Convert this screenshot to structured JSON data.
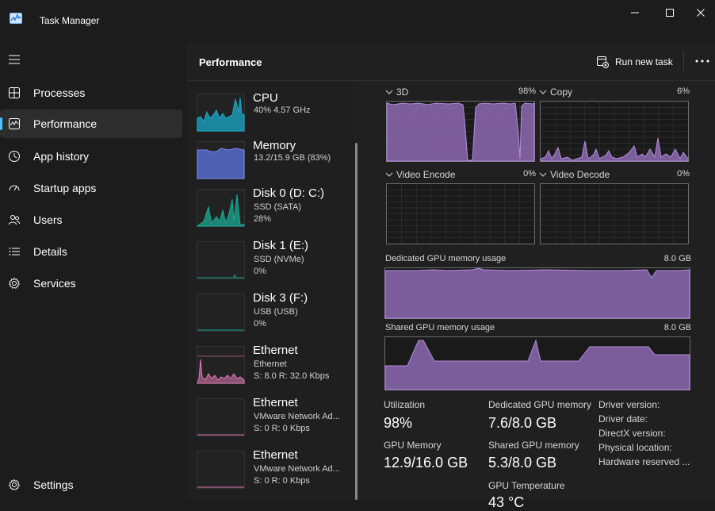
{
  "window": {
    "title": "Task Manager"
  },
  "nav": {
    "items": [
      {
        "label": "Processes",
        "icon": "processes-grid-icon"
      },
      {
        "label": "Performance",
        "icon": "performance-graph-icon"
      },
      {
        "label": "App history",
        "icon": "history-icon"
      },
      {
        "label": "Startup apps",
        "icon": "startup-gauge-icon"
      },
      {
        "label": "Users",
        "icon": "users-icon"
      },
      {
        "label": "Details",
        "icon": "details-list-icon"
      },
      {
        "label": "Services",
        "icon": "services-gear-icon"
      }
    ],
    "settings_label": "Settings"
  },
  "header": {
    "title": "Performance",
    "run_new_task": "Run new task",
    "more": "..."
  },
  "devices": [
    {
      "name": "CPU",
      "line1": "40% 4.57 GHz",
      "line2": ""
    },
    {
      "name": "Memory",
      "line1": "13.2/15.9 GB (83%)",
      "line2": ""
    },
    {
      "name": "Disk 0 (D: C:)",
      "line1": "SSD (SATA)",
      "line2": "28%"
    },
    {
      "name": "Disk 1 (E:)",
      "line1": "SSD (NVMe)",
      "line2": "0%"
    },
    {
      "name": "Disk 3 (F:)",
      "line1": "USB (USB)",
      "line2": "0%"
    },
    {
      "name": "Ethernet",
      "line1": "Ethernet",
      "line2": "S: 8.0  R: 32.0 Kbps"
    },
    {
      "name": "Ethernet",
      "line1": "VMware Network Ad...",
      "line2": "S: 0  R: 0 Kbps"
    },
    {
      "name": "Ethernet",
      "line1": "VMware Network Ad...",
      "line2": "S: 0  R: 0 Kbps"
    }
  ],
  "gpu": {
    "engines": [
      {
        "name": "3D",
        "value": "98%"
      },
      {
        "name": "Copy",
        "value": "6%"
      },
      {
        "name": "Video Encode",
        "value": "0%"
      },
      {
        "name": "Video Decode",
        "value": "0%"
      }
    ],
    "dedicated_label": "Dedicated GPU memory usage",
    "dedicated_max": "8.0 GB",
    "shared_label": "Shared GPU memory usage",
    "shared_max": "8.0 GB",
    "stats": {
      "utilization_label": "Utilization",
      "utilization_value": "98%",
      "dedicated_mem_label": "Dedicated GPU memory",
      "dedicated_mem_value": "7.6/8.0 GB",
      "gpu_memory_label": "GPU Memory",
      "gpu_memory_value": "12.9/16.0 GB",
      "shared_mem_label": "Shared GPU memory",
      "shared_mem_value": "5.3/8.0 GB",
      "temp_label": "GPU Temperature",
      "temp_value": "43 °C"
    },
    "info": [
      "Driver version:",
      "Driver date:",
      "DirectX version:",
      "Physical location:",
      "Hardware reserved ..."
    ]
  },
  "colors": {
    "accent": "#4cc2ff",
    "cpu": "#1aa9c8",
    "memory": "#5b6fd6",
    "disk": "#19a892",
    "ethernet": "#e07ab5",
    "gpu": "#8e6ab3"
  }
}
